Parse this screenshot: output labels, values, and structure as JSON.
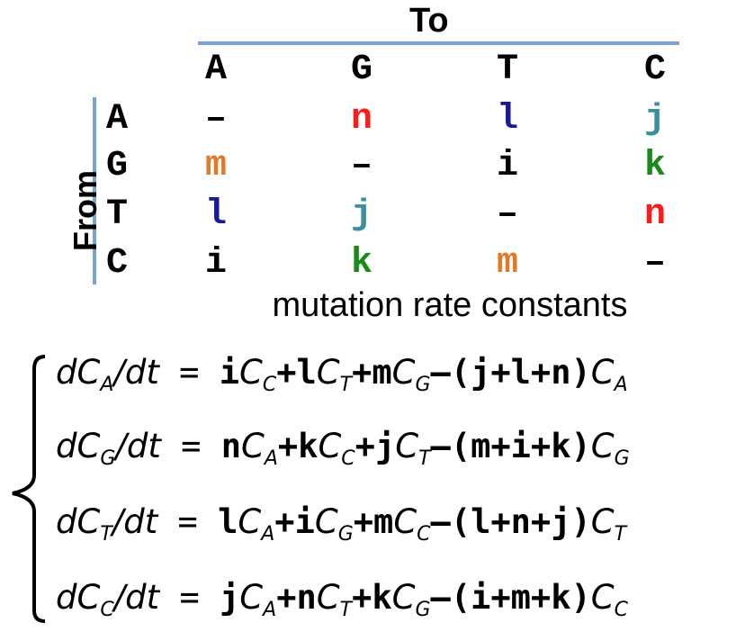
{
  "header": {
    "to_label": "To",
    "from_label": "From"
  },
  "columns": [
    "A",
    "G",
    "T",
    "C"
  ],
  "rows": [
    {
      "label": "A",
      "cells": [
        {
          "text": "–",
          "color": "#000000"
        },
        {
          "text": "n",
          "color": "#ff1a1a"
        },
        {
          "text": "l",
          "color": "#1a1a99"
        },
        {
          "text": "j",
          "color": "#3a8fa0"
        }
      ]
    },
    {
      "label": "G",
      "cells": [
        {
          "text": "m",
          "color": "#e07a28"
        },
        {
          "text": "–",
          "color": "#000000"
        },
        {
          "text": "i",
          "color": "#000000"
        },
        {
          "text": "k",
          "color": "#1a8a1a"
        }
      ]
    },
    {
      "label": "T",
      "cells": [
        {
          "text": "l",
          "color": "#1a1a99"
        },
        {
          "text": "j",
          "color": "#3a8fa0"
        },
        {
          "text": "–",
          "color": "#000000"
        },
        {
          "text": "n",
          "color": "#ff1a1a"
        }
      ]
    },
    {
      "label": "C",
      "cells": [
        {
          "text": "i",
          "color": "#000000"
        },
        {
          "text": "k",
          "color": "#1a8a1a"
        },
        {
          "text": "m",
          "color": "#e07a28"
        },
        {
          "text": "–",
          "color": "#000000"
        }
      ]
    }
  ],
  "caption": "mutation rate constants",
  "equations": [
    {
      "lhs_d": "dC",
      "lhs_sub": "A",
      "lhs_rest": "/dt",
      "eq": "=",
      "t1c": "i",
      "t1v": "C",
      "t1s": "C",
      "t2c": "l",
      "t2v": "C",
      "t2s": "T",
      "t3c": "m",
      "t3v": "C",
      "t3s": "G",
      "paren": "(j+l+n)",
      "tail_v": "C",
      "tail_s": "A"
    },
    {
      "lhs_d": "dC",
      "lhs_sub": "G",
      "lhs_rest": "/dt",
      "eq": "=",
      "t1c": "n",
      "t1v": "C",
      "t1s": "A",
      "t2c": "k",
      "t2v": "C",
      "t2s": "C",
      "t3c": "j",
      "t3v": "C",
      "t3s": "T",
      "paren": "(m+i+k)",
      "tail_v": "C",
      "tail_s": "G"
    },
    {
      "lhs_d": "dC",
      "lhs_sub": "T",
      "lhs_rest": "/dt",
      "eq": "=",
      "t1c": "l",
      "t1v": "C",
      "t1s": "A",
      "t2c": "i",
      "t2v": "C",
      "t2s": "G",
      "t3c": "m",
      "t3v": "C",
      "t3s": "C",
      "paren": "(l+n+j)",
      "tail_v": "C",
      "tail_s": "T"
    },
    {
      "lhs_d": "dC",
      "lhs_sub": "C",
      "lhs_rest": "/dt",
      "eq": "=",
      "t1c": "j",
      "t1v": "C",
      "t1s": "A",
      "t2c": "n",
      "t2v": "C",
      "t2s": "T",
      "t3c": "k",
      "t3v": "C",
      "t3s": "G",
      "paren": "(i+m+k)",
      "tail_v": "C",
      "tail_s": "C"
    }
  ],
  "operators": {
    "plus": "+",
    "minus": "–"
  },
  "colors": {
    "axis_line": "#7ba3cf"
  }
}
